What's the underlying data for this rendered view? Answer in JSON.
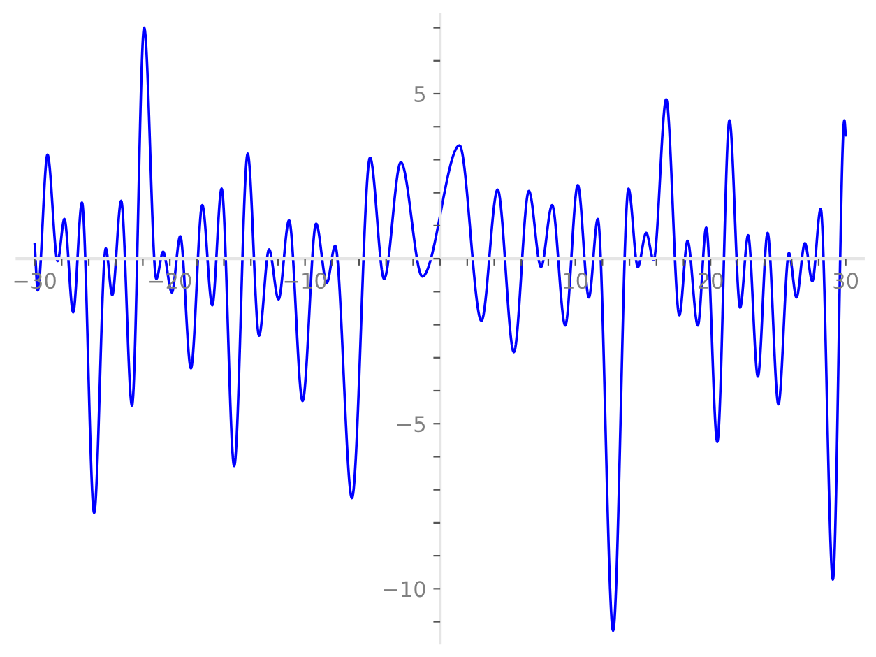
{
  "chart_data": {
    "type": "line",
    "x": [
      -30.0,
      -29.77,
      -29.05,
      -28.3,
      -27.8,
      -27.15,
      -26.5,
      -25.6,
      -24.74,
      -24.26,
      -23.6,
      -22.8,
      -21.9,
      -21.0,
      -20.5,
      -19.85,
      -19.23,
      -18.44,
      -17.6,
      -16.86,
      -16.17,
      -15.24,
      -14.24,
      -13.4,
      -12.66,
      -11.96,
      -11.18,
      -10.18,
      -9.18,
      -8.39,
      -7.77,
      -6.53,
      -5.19,
      -4.15,
      -2.91,
      -1.32,
      1.43,
      3.05,
      4.25,
      5.45,
      6.56,
      7.46,
      8.28,
      9.25,
      10.18,
      11.0,
      11.66,
      12.79,
      13.93,
      14.62,
      15.24,
      15.79,
      16.72,
      17.69,
      18.3,
      19.06,
      19.68,
      20.5,
      21.4,
      22.19,
      22.78,
      23.5,
      24.22,
      25.02,
      25.8,
      26.36,
      26.98,
      27.53,
      28.15,
      29.05,
      29.9,
      30.0
    ],
    "series": [
      {
        "color": "#0000ff",
        "values": [
          0.45,
          -0.96,
          3.15,
          -0.07,
          1.2,
          -1.62,
          1.7,
          -7.7,
          0.31,
          -1.1,
          1.75,
          -4.45,
          7.0,
          -0.61,
          0.21,
          -1.02,
          0.68,
          -3.32,
          1.62,
          -1.41,
          2.12,
          -6.28,
          3.18,
          -2.33,
          0.28,
          -1.23,
          1.16,
          -4.31,
          1.06,
          -0.73,
          0.39,
          -7.25,
          3.06,
          -0.61,
          2.92,
          -0.54,
          3.43,
          -1.88,
          2.09,
          -2.83,
          2.05,
          -0.25,
          1.62,
          -2.02,
          2.23,
          -1.17,
          1.2,
          -11.27,
          2.12,
          -0.25,
          0.78,
          -0.04,
          4.83,
          -1.71,
          0.54,
          -2.02,
          0.94,
          -5.55,
          4.19,
          -1.48,
          0.71,
          -3.57,
          0.78,
          -4.41,
          0.17,
          -1.17,
          0.47,
          -0.68,
          1.51,
          -9.72,
          4.19,
          3.74
        ]
      }
    ],
    "xlim": [
      -31.3,
      31.3
    ],
    "ylim": [
      -11.65,
      7.4
    ],
    "xticks": [
      {
        "value": -30,
        "label": "−30"
      },
      {
        "value": -28,
        "label": null
      },
      {
        "value": -26,
        "label": null
      },
      {
        "value": -24,
        "label": null
      },
      {
        "value": -22,
        "label": null
      },
      {
        "value": -20,
        "label": "−20"
      },
      {
        "value": -18,
        "label": null
      },
      {
        "value": -16,
        "label": null
      },
      {
        "value": -14,
        "label": null
      },
      {
        "value": -12,
        "label": null
      },
      {
        "value": -10,
        "label": "−10"
      },
      {
        "value": -8,
        "label": null
      },
      {
        "value": -6,
        "label": null
      },
      {
        "value": -4,
        "label": null
      },
      {
        "value": -2,
        "label": null
      },
      {
        "value": 0,
        "label": null
      },
      {
        "value": 2,
        "label": null
      },
      {
        "value": 4,
        "label": null
      },
      {
        "value": 6,
        "label": null
      },
      {
        "value": 8,
        "label": null
      },
      10,
      {
        "value": 12,
        "label": null
      },
      {
        "value": 14,
        "label": null
      },
      {
        "value": 16,
        "label": null
      },
      {
        "value": 18,
        "label": null
      },
      20,
      {
        "value": 22,
        "label": null
      },
      {
        "value": 24,
        "label": null
      },
      {
        "value": 26,
        "label": null
      },
      {
        "value": 28,
        "label": null
      },
      30
    ],
    "yticks": [
      {
        "value": -11,
        "label": null
      },
      {
        "value": -10,
        "label": "−10"
      },
      {
        "value": -9,
        "label": null
      },
      {
        "value": -8,
        "label": null
      },
      {
        "value": -7,
        "label": null
      },
      {
        "value": -6,
        "label": null
      },
      {
        "value": -5,
        "label": "−5"
      },
      {
        "value": -4,
        "label": null
      },
      {
        "value": -3,
        "label": null
      },
      {
        "value": -2,
        "label": null
      },
      {
        "value": -1,
        "label": null
      },
      {
        "value": 0,
        "label": null
      },
      {
        "value": 1,
        "label": null
      },
      {
        "value": 2,
        "label": null
      },
      {
        "value": 3,
        "label": null
      },
      {
        "value": 4,
        "label": null
      },
      5,
      {
        "value": 6,
        "label": null
      },
      {
        "value": 7,
        "label": null
      }
    ],
    "grid": false,
    "marker": "none",
    "line_style": "solid"
  }
}
